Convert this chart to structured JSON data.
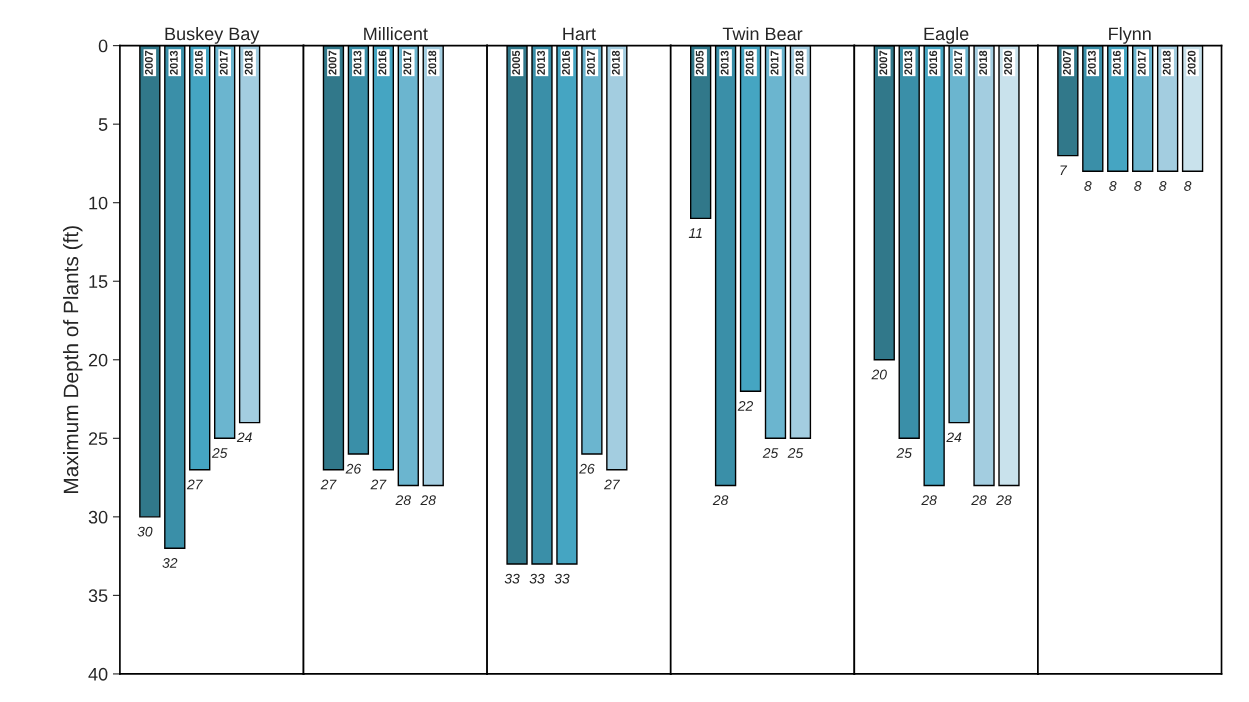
{
  "chart_data": [
    {
      "type": "bar",
      "title": "Buskey Bay",
      "ylabel": "Maximum Depth of Plants (ft)",
      "categories": [
        "2007",
        "2013",
        "2016",
        "2017",
        "2018"
      ],
      "values": [
        30,
        32,
        27,
        25,
        24
      ],
      "colors": [
        "#31788a",
        "#3a8fa8",
        "#45a5c2",
        "#6bb5cf",
        "#a3cde0"
      ],
      "ylim": [
        40,
        0
      ],
      "yticks": [
        0,
        5,
        10,
        15,
        20,
        25,
        30,
        35,
        40
      ],
      "data_labels": true,
      "grid": false,
      "legend": false
    },
    {
      "type": "bar",
      "title": "Millicent",
      "categories": [
        "2007",
        "2013",
        "2016",
        "2017",
        "2018"
      ],
      "values": [
        27,
        26,
        27,
        28,
        28
      ],
      "colors": [
        "#31788a",
        "#3a8fa8",
        "#45a5c2",
        "#6bb5cf",
        "#a3cde0"
      ],
      "ylim": [
        40,
        0
      ],
      "yticks": [
        0,
        5,
        10,
        15,
        20,
        25,
        30,
        35,
        40
      ],
      "tick_labels": "x",
      "data_labels": true,
      "grid": false,
      "legend": false
    },
    {
      "type": "bar",
      "title": "Hart",
      "categories": [
        "2005",
        "2013",
        "2016",
        "2017",
        "2018"
      ],
      "values": [
        33,
        33,
        33,
        26,
        27
      ],
      "colors": [
        "#31788a",
        "#3a8fa8",
        "#45a5c2",
        "#6bb5cf",
        "#a3cde0"
      ],
      "ylim": [
        40,
        0
      ],
      "yticks": [
        0,
        5,
        10,
        15,
        20,
        25,
        30,
        35,
        40
      ],
      "tick_labels": "x",
      "data_labels": true,
      "grid": false,
      "legend": false
    },
    {
      "type": "bar",
      "title": "Twin Bear",
      "categories": [
        "2005",
        "2013",
        "2016",
        "2017",
        "2018"
      ],
      "values": [
        11,
        28,
        22,
        25,
        25
      ],
      "colors": [
        "#31788a",
        "#3a8fa8",
        "#45a5c2",
        "#6bb5cf",
        "#a3cde0"
      ],
      "ylim": [
        40,
        0
      ],
      "yticks": [
        0,
        5,
        10,
        15,
        20,
        25,
        30,
        35,
        40
      ],
      "tick_labels": "x",
      "data_labels": true,
      "grid": false,
      "legend": false
    },
    {
      "type": "bar",
      "title": "Eagle",
      "categories": [
        "2007",
        "2013",
        "2016",
        "2017",
        "2018",
        "2020"
      ],
      "values": [
        20,
        25,
        28,
        24,
        28,
        28
      ],
      "colors": [
        "#31788a",
        "#3a8fa8",
        "#45a5c2",
        "#6bb5cf",
        "#a3cde0",
        "#c9e2ec"
      ],
      "ylim": [
        40,
        0
      ],
      "yticks": [
        0,
        5,
        10,
        15,
        20,
        25,
        30,
        35,
        40
      ],
      "tick_labels": "x",
      "data_labels": true,
      "grid": false,
      "legend": false
    },
    {
      "type": "bar",
      "title": "Flynn",
      "categories": [
        "2007",
        "2013",
        "2016",
        "2017",
        "2018",
        "2020"
      ],
      "values": [
        7,
        8,
        8,
        8,
        8,
        8
      ],
      "colors": [
        "#31788a",
        "#3a8fa8",
        "#45a5c2",
        "#6bb5cf",
        "#a3cde0",
        "#c9e2ec"
      ],
      "ylim": [
        40,
        0
      ],
      "yticks": [
        0,
        5,
        10,
        15,
        20,
        25,
        30,
        35,
        40
      ],
      "tick_labels": "x",
      "data_labels": true,
      "grid": false,
      "legend": false
    }
  ]
}
